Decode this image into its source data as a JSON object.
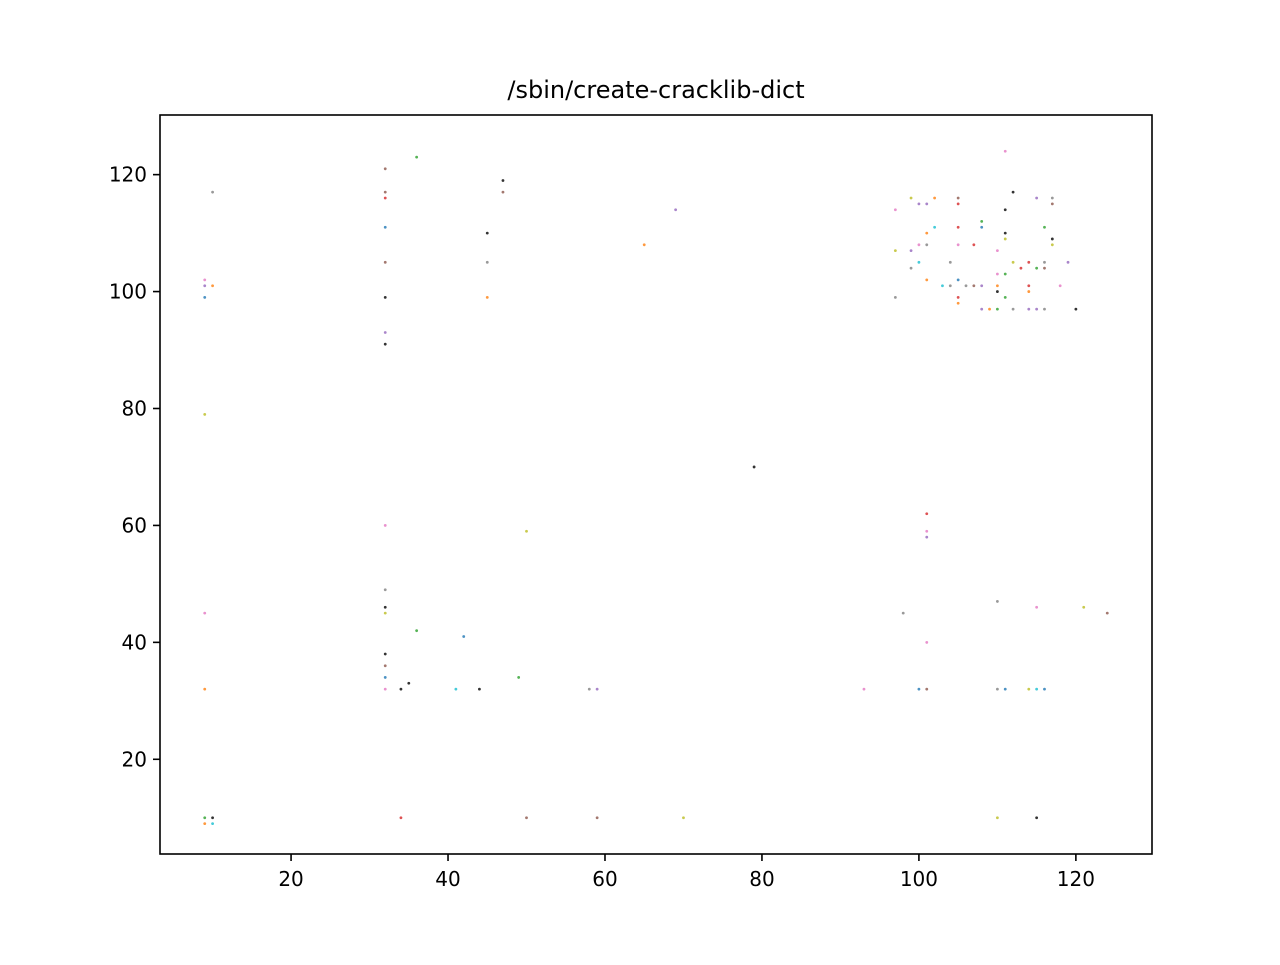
{
  "chart_data": {
    "type": "scatter",
    "title": "/sbin/create-cracklib-dict",
    "xlabel": "",
    "ylabel": "",
    "xlim": [
      3.3,
      129.7
    ],
    "ylim": [
      3.8,
      130.2
    ],
    "xticks": [
      20,
      40,
      60,
      80,
      100,
      120
    ],
    "yticks": [
      20,
      40,
      60,
      80,
      100,
      120
    ],
    "grid": false,
    "legend": "none",
    "marker_colors": [
      "#1f77b4",
      "#ff7f0e",
      "#2ca02c",
      "#d62728",
      "#9467bd",
      "#8c564b",
      "#e377c2",
      "#7f7f7f",
      "#bcbd22",
      "#17becf",
      "#000000"
    ],
    "points": [
      [
        9,
        102
      ],
      [
        9,
        101
      ],
      [
        10,
        101
      ],
      [
        9,
        99
      ],
      [
        10,
        117
      ],
      [
        9,
        79
      ],
      [
        9,
        45
      ],
      [
        9,
        32
      ],
      [
        9,
        10
      ],
      [
        10,
        10
      ],
      [
        9,
        9
      ],
      [
        10,
        9
      ],
      [
        32,
        121
      ],
      [
        32,
        117
      ],
      [
        32,
        116
      ],
      [
        32,
        111
      ],
      [
        32,
        105
      ],
      [
        32,
        99
      ],
      [
        32,
        93
      ],
      [
        32,
        91
      ],
      [
        32,
        60
      ],
      [
        32,
        49
      ],
      [
        32,
        46
      ],
      [
        32,
        45
      ],
      [
        32,
        38
      ],
      [
        32,
        36
      ],
      [
        32,
        34
      ],
      [
        32,
        32
      ],
      [
        34,
        32
      ],
      [
        35,
        33
      ],
      [
        36,
        123
      ],
      [
        36,
        42
      ],
      [
        34,
        10
      ],
      [
        41,
        32
      ],
      [
        42,
        41
      ],
      [
        44,
        32
      ],
      [
        45,
        110
      ],
      [
        45,
        105
      ],
      [
        45,
        99
      ],
      [
        47,
        119
      ],
      [
        47,
        117
      ],
      [
        49,
        34
      ],
      [
        50,
        59
      ],
      [
        50,
        10
      ],
      [
        58,
        32
      ],
      [
        59,
        32
      ],
      [
        59,
        10
      ],
      [
        65,
        108
      ],
      [
        69,
        114
      ],
      [
        70,
        10
      ],
      [
        79,
        70
      ],
      [
        93,
        32
      ],
      [
        97,
        114
      ],
      [
        97,
        107
      ],
      [
        97,
        99
      ],
      [
        98,
        45
      ],
      [
        99,
        116
      ],
      [
        99,
        107
      ],
      [
        99,
        104
      ],
      [
        100,
        115
      ],
      [
        100,
        108
      ],
      [
        100,
        105
      ],
      [
        100,
        32
      ],
      [
        101,
        115
      ],
      [
        101,
        110
      ],
      [
        101,
        108
      ],
      [
        101,
        102
      ],
      [
        101,
        62
      ],
      [
        101,
        59
      ],
      [
        101,
        58
      ],
      [
        101,
        40
      ],
      [
        101,
        32
      ],
      [
        102,
        116
      ],
      [
        102,
        111
      ],
      [
        103,
        101
      ],
      [
        104,
        105
      ],
      [
        104,
        101
      ],
      [
        105,
        116
      ],
      [
        105,
        115
      ],
      [
        105,
        111
      ],
      [
        105,
        108
      ],
      [
        105,
        102
      ],
      [
        105,
        99
      ],
      [
        105,
        98
      ],
      [
        106,
        101
      ],
      [
        107,
        108
      ],
      [
        107,
        101
      ],
      [
        108,
        112
      ],
      [
        108,
        111
      ],
      [
        108,
        101
      ],
      [
        108,
        97
      ],
      [
        109,
        97
      ],
      [
        110,
        107
      ],
      [
        110,
        103
      ],
      [
        110,
        101
      ],
      [
        110,
        100
      ],
      [
        110,
        97
      ],
      [
        110,
        47
      ],
      [
        110,
        32
      ],
      [
        110,
        10
      ],
      [
        111,
        124
      ],
      [
        111,
        114
      ],
      [
        111,
        110
      ],
      [
        111,
        109
      ],
      [
        111,
        103
      ],
      [
        111,
        99
      ],
      [
        111,
        32
      ],
      [
        112,
        117
      ],
      [
        112,
        105
      ],
      [
        112,
        97
      ],
      [
        113,
        104
      ],
      [
        114,
        105
      ],
      [
        114,
        101
      ],
      [
        114,
        100
      ],
      [
        114,
        97
      ],
      [
        114,
        32
      ],
      [
        115,
        116
      ],
      [
        115,
        104
      ],
      [
        115,
        97
      ],
      [
        115,
        46
      ],
      [
        115,
        32
      ],
      [
        115,
        10
      ],
      [
        116,
        111
      ],
      [
        116,
        105
      ],
      [
        116,
        104
      ],
      [
        116,
        97
      ],
      [
        116,
        32
      ],
      [
        117,
        116
      ],
      [
        117,
        115
      ],
      [
        117,
        109
      ],
      [
        117,
        108
      ],
      [
        118,
        101
      ],
      [
        119,
        105
      ],
      [
        120,
        97
      ],
      [
        121,
        46
      ],
      [
        124,
        45
      ]
    ]
  }
}
